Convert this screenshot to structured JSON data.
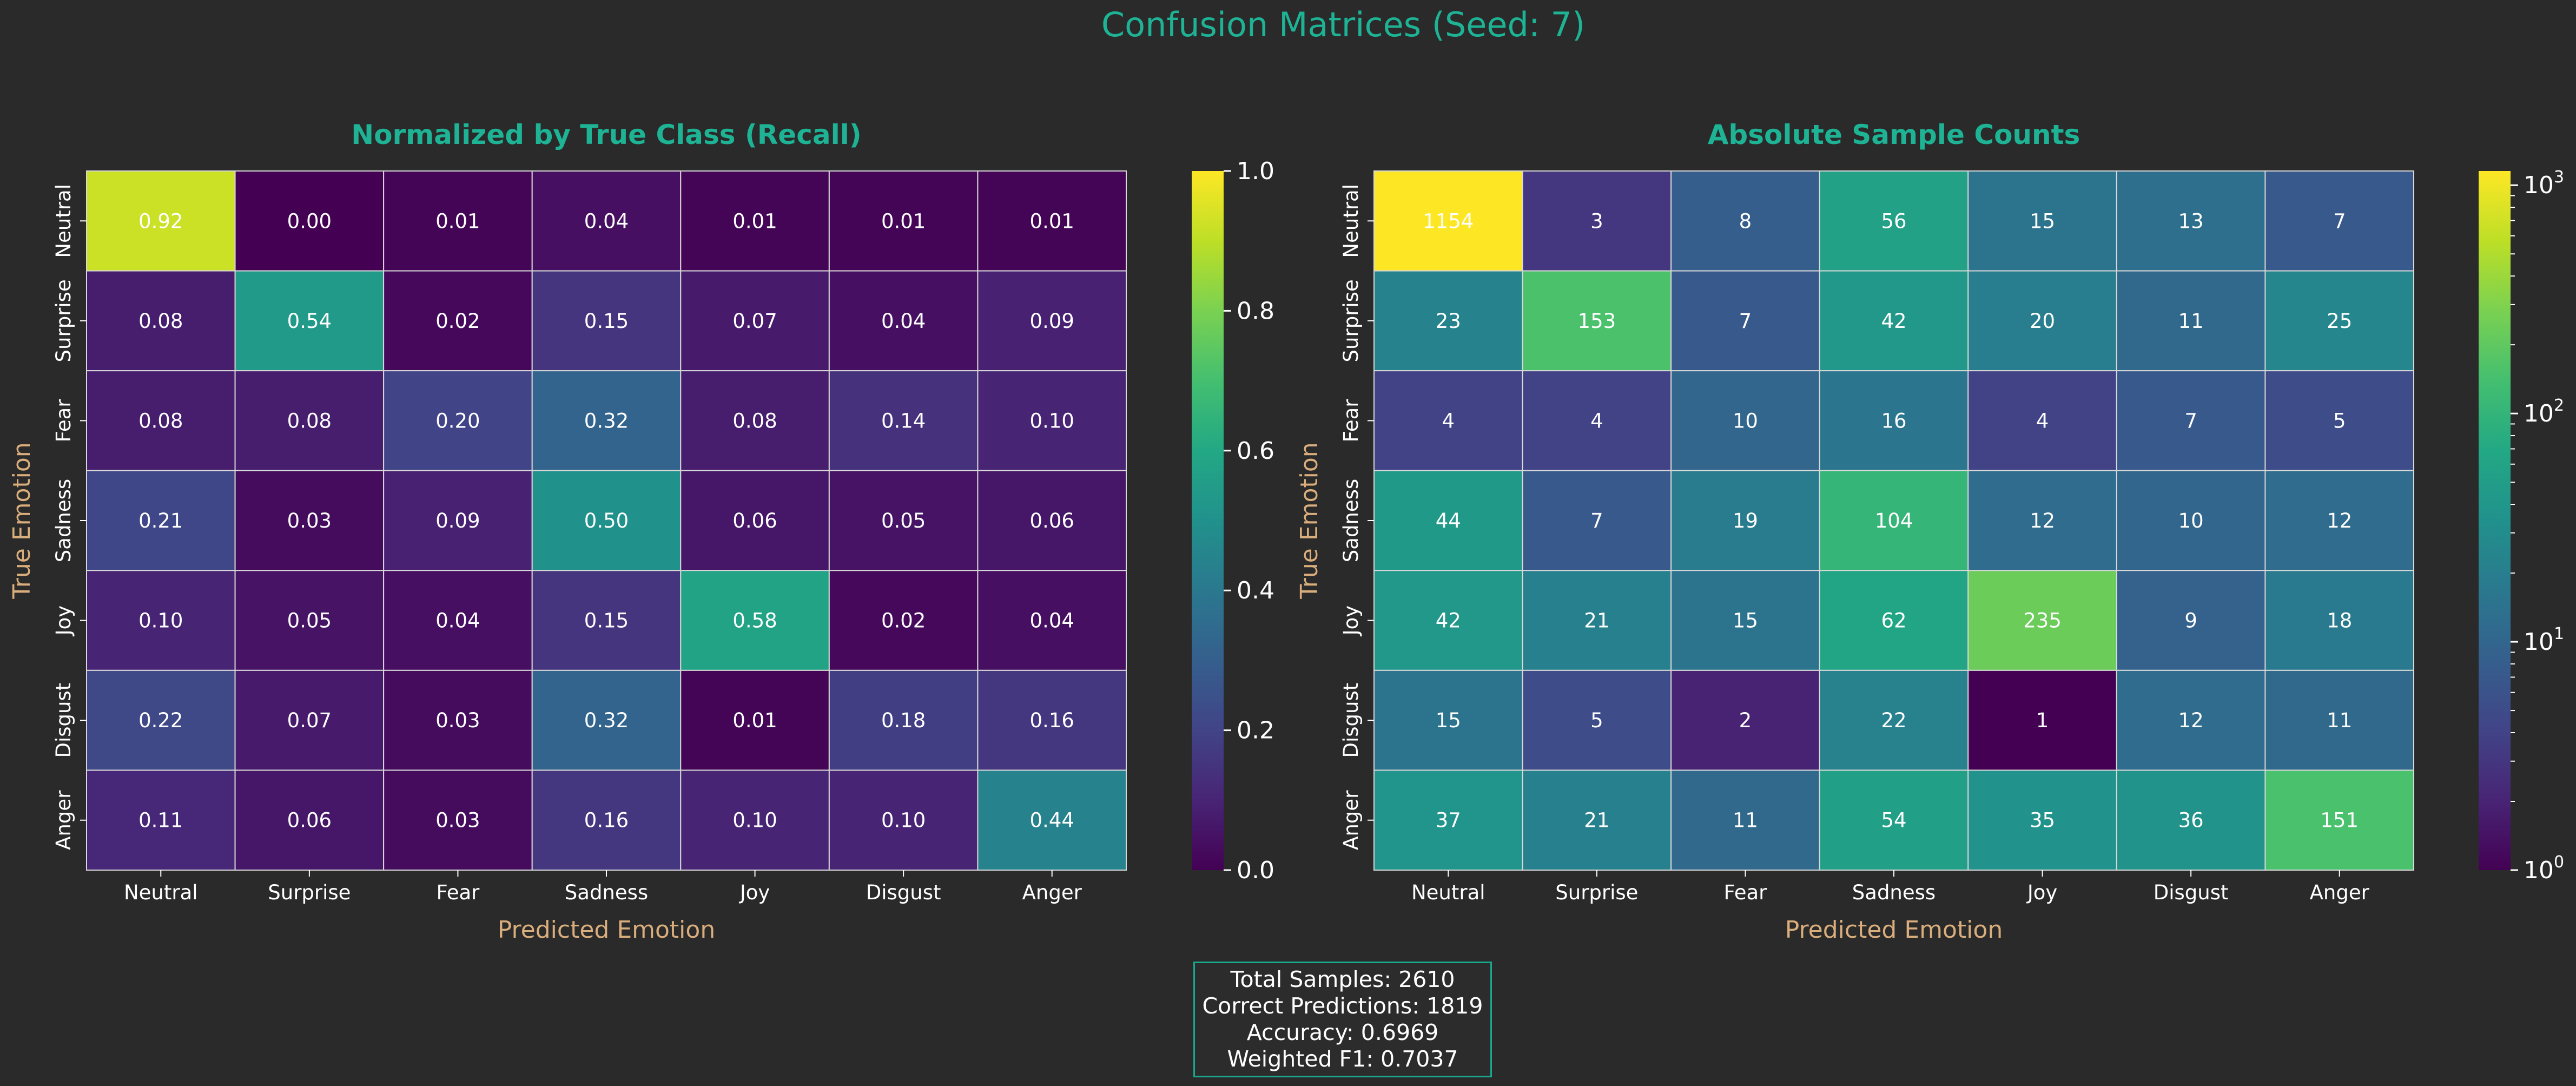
{
  "suptitle": "Confusion Matrices (Seed: 7)",
  "colors": {
    "background": "#2a2a2a",
    "title": "#1db394",
    "axis_label": "#d9ad7c",
    "tick": "#ffffff",
    "grid": "#d8d8d8",
    "stats_border": "#1aa88c"
  },
  "chart_data": [
    {
      "type": "heatmap",
      "title": "Normalized by True Class (Recall)",
      "xlabel": "Predicted Emotion",
      "ylabel": "True Emotion",
      "x_categories": [
        "Neutral",
        "Surprise",
        "Fear",
        "Sadness",
        "Joy",
        "Disgust",
        "Anger"
      ],
      "y_categories": [
        "Neutral",
        "Surprise",
        "Fear",
        "Sadness",
        "Joy",
        "Disgust",
        "Anger"
      ],
      "values": [
        [
          0.92,
          0.0,
          0.01,
          0.04,
          0.01,
          0.01,
          0.01
        ],
        [
          0.08,
          0.54,
          0.02,
          0.15,
          0.07,
          0.04,
          0.09
        ],
        [
          0.08,
          0.08,
          0.2,
          0.32,
          0.08,
          0.14,
          0.1
        ],
        [
          0.21,
          0.03,
          0.09,
          0.5,
          0.06,
          0.05,
          0.06
        ],
        [
          0.1,
          0.05,
          0.04,
          0.15,
          0.58,
          0.02,
          0.04
        ],
        [
          0.22,
          0.07,
          0.03,
          0.32,
          0.01,
          0.18,
          0.16
        ],
        [
          0.11,
          0.06,
          0.03,
          0.16,
          0.1,
          0.1,
          0.44
        ]
      ],
      "labels": [
        [
          "0.92",
          "0.00",
          "0.01",
          "0.04",
          "0.01",
          "0.01",
          "0.01"
        ],
        [
          "0.08",
          "0.54",
          "0.02",
          "0.15",
          "0.07",
          "0.04",
          "0.09"
        ],
        [
          "0.08",
          "0.08",
          "0.20",
          "0.32",
          "0.08",
          "0.14",
          "0.10"
        ],
        [
          "0.21",
          "0.03",
          "0.09",
          "0.50",
          "0.06",
          "0.05",
          "0.06"
        ],
        [
          "0.10",
          "0.05",
          "0.04",
          "0.15",
          "0.58",
          "0.02",
          "0.04"
        ],
        [
          "0.22",
          "0.07",
          "0.03",
          "0.32",
          "0.01",
          "0.18",
          "0.16"
        ],
        [
          "0.11",
          "0.06",
          "0.03",
          "0.16",
          "0.10",
          "0.10",
          "0.44"
        ]
      ],
      "colormap": "viridis",
      "scale": "linear",
      "vmin": 0,
      "vmax": 1,
      "colorbar_ticks": [
        {
          "value": 0,
          "label": "0.0"
        },
        {
          "value": 0.2,
          "label": "0.2"
        },
        {
          "value": 0.4,
          "label": "0.4"
        },
        {
          "value": 0.6,
          "label": "0.6"
        },
        {
          "value": 0.8,
          "label": "0.8"
        },
        {
          "value": 1.0,
          "label": "1.0"
        }
      ]
    },
    {
      "type": "heatmap",
      "title": "Absolute Sample Counts",
      "xlabel": "Predicted Emotion",
      "ylabel": "True Emotion",
      "x_categories": [
        "Neutral",
        "Surprise",
        "Fear",
        "Sadness",
        "Joy",
        "Disgust",
        "Anger"
      ],
      "y_categories": [
        "Neutral",
        "Surprise",
        "Fear",
        "Sadness",
        "Joy",
        "Disgust",
        "Anger"
      ],
      "values": [
        [
          1154,
          3,
          8,
          56,
          15,
          13,
          7
        ],
        [
          23,
          153,
          7,
          42,
          20,
          11,
          25
        ],
        [
          4,
          4,
          10,
          16,
          4,
          7,
          5
        ],
        [
          44,
          7,
          19,
          104,
          12,
          10,
          12
        ],
        [
          42,
          21,
          15,
          62,
          235,
          9,
          18
        ],
        [
          15,
          5,
          2,
          22,
          1,
          12,
          11
        ],
        [
          37,
          21,
          11,
          54,
          35,
          36,
          151
        ]
      ],
      "labels": [
        [
          "1154",
          "3",
          "8",
          "56",
          "15",
          "13",
          "7"
        ],
        [
          "23",
          "153",
          "7",
          "42",
          "20",
          "11",
          "25"
        ],
        [
          "4",
          "4",
          "10",
          "16",
          "4",
          "7",
          "5"
        ],
        [
          "44",
          "7",
          "19",
          "104",
          "12",
          "10",
          "12"
        ],
        [
          "42",
          "21",
          "15",
          "62",
          "235",
          "9",
          "18"
        ],
        [
          "15",
          "5",
          "2",
          "22",
          "1",
          "12",
          "11"
        ],
        [
          "37",
          "21",
          "11",
          "54",
          "35",
          "36",
          "151"
        ]
      ],
      "colormap": "viridis",
      "scale": "log",
      "vmin": 1,
      "vmax": 1154,
      "colorbar_ticks": [
        {
          "value": 1,
          "base": "10",
          "exp": "0"
        },
        {
          "value": 10,
          "base": "10",
          "exp": "1"
        },
        {
          "value": 100,
          "base": "10",
          "exp": "2"
        },
        {
          "value": 1000,
          "base": "10",
          "exp": "3"
        }
      ]
    }
  ],
  "stats": {
    "total_samples": "Total Samples: 2610",
    "correct_predictions": "Correct Predictions: 1819",
    "accuracy": "Accuracy: 0.6969",
    "weighted_f1": "Weighted F1: 0.7037"
  }
}
